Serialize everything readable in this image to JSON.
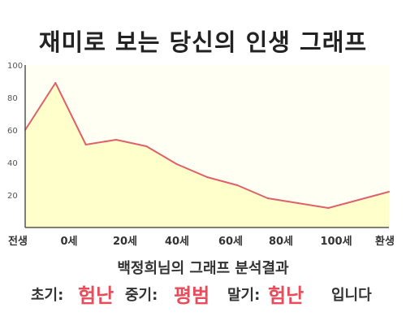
{
  "title": "재미로 보는 당신의 인생 그래프",
  "subtitle": "백정희님의 그래프 분석결과",
  "summary": {
    "early_label": "초기:",
    "early_value": "험난",
    "mid_label": "중기:",
    "mid_value": "평범",
    "late_label": "말기:",
    "late_value": "험난",
    "ending": "입니다"
  },
  "chart_data": {
    "type": "area",
    "title": "재미로 보는 당신의 인생 그래프",
    "xlabel": "",
    "ylabel": "",
    "x_tick_labels": [
      "전생",
      "0세",
      "20세",
      "40세",
      "60세",
      "80세",
      "100세",
      "환생"
    ],
    "y_ticks": [
      20,
      40,
      60,
      80,
      100
    ],
    "ylim": [
      0,
      100
    ],
    "grid": false,
    "series": [
      {
        "values": [
          60,
          89,
          51,
          54,
          50,
          39,
          31,
          26,
          18,
          15,
          12,
          17,
          22
        ]
      }
    ],
    "colors": {
      "line": "#e0606a",
      "fill": "#ffffcc",
      "axis": "#555555"
    }
  }
}
